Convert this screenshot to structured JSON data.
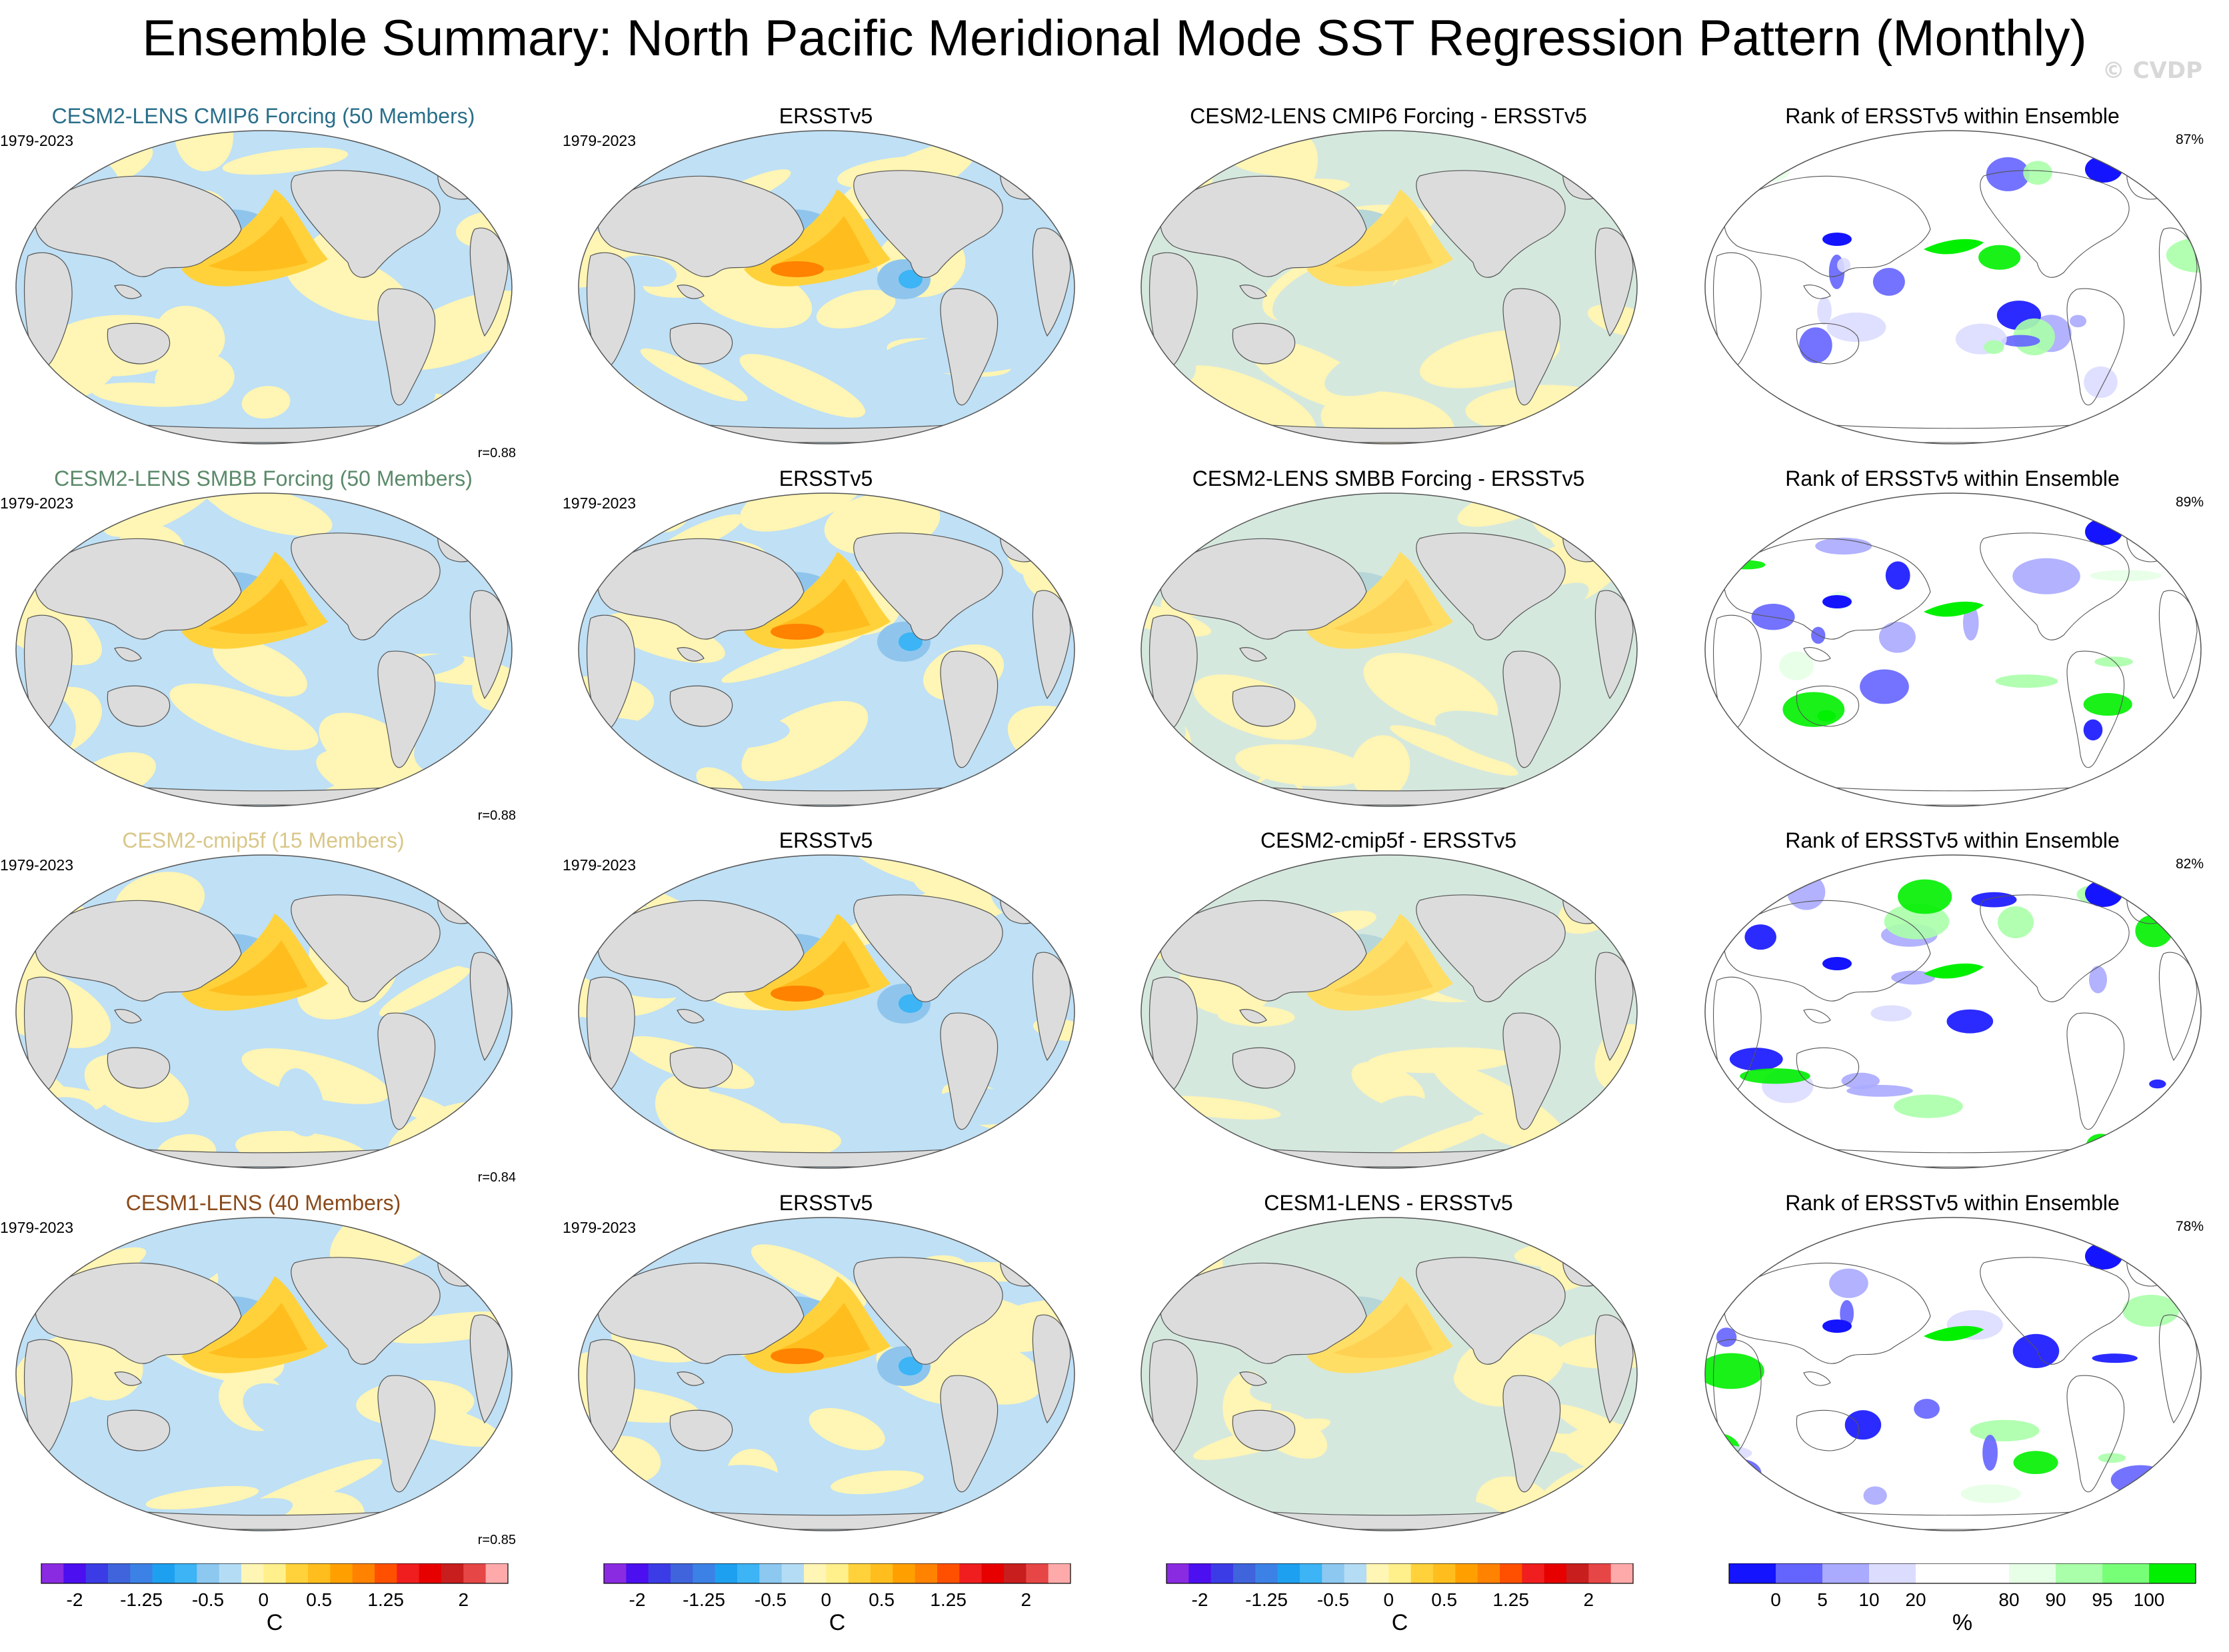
{
  "title": "Ensemble Summary: North Pacific Meridional Mode SST Regression Pattern (Monthly)",
  "watermark": "© CVDP",
  "rows": [
    {
      "model": "CESM2-LENS CMIP6 Forcing (50 Members)",
      "model_color": "#2a6f8a",
      "period_model": "1979-2023",
      "period_obs": "1979-2023",
      "r": "r=0.88",
      "obs_title": "ERSSTv5",
      "diff_title": "CESM2-LENS CMIP6 Forcing - ERSSTv5",
      "rank_title": "Rank of ERSSTv5 within Ensemble",
      "pct": "87%"
    },
    {
      "model": "CESM2-LENS SMBB Forcing (50 Members)",
      "model_color": "#5b8a6a",
      "period_model": "1979-2023",
      "period_obs": "1979-2023",
      "r": "r=0.88",
      "obs_title": "ERSSTv5",
      "diff_title": "CESM2-LENS SMBB Forcing - ERSSTv5",
      "rank_title": "Rank of ERSSTv5 within Ensemble",
      "pct": "89%"
    },
    {
      "model": "CESM2-cmip5f (15 Members)",
      "model_color": "#d9c78a",
      "period_model": "1979-2023",
      "period_obs": "1979-2023",
      "r": "r=0.84",
      "obs_title": "ERSSTv5",
      "diff_title": "CESM2-cmip5f - ERSSTv5",
      "rank_title": "Rank of ERSSTv5 within Ensemble",
      "pct": "82%"
    },
    {
      "model": "CESM1-LENS (40 Members)",
      "model_color": "#8a4a1a",
      "period_model": "1979-2023",
      "period_obs": "1979-2023",
      "r": "r=0.85",
      "obs_title": "ERSSTv5",
      "diff_title": "CESM1-LENS - ERSSTv5",
      "rank_title": "Rank of ERSSTv5 within Ensemble",
      "pct": "78%"
    }
  ],
  "colorbar_sst": {
    "unit": "C",
    "colors": [
      "#8a2be2",
      "#4b0ff0",
      "#3c3ce6",
      "#3f64dc",
      "#3c82e6",
      "#1ea0f0",
      "#3cb4f5",
      "#8cc8f0",
      "#b4dcf5",
      "#fff5b4",
      "#fff08c",
      "#ffd23c",
      "#ffbe1e",
      "#ffa000",
      "#ff8200",
      "#ff5000",
      "#f01e1e",
      "#e60000",
      "#c81e1e",
      "#e64646",
      "#ffaaaa"
    ],
    "ticks": [
      "-2",
      "-1.25",
      "-0.5",
      "0",
      "0.5",
      "1.25",
      "2"
    ]
  },
  "colorbar_rank": {
    "unit": "%",
    "colors": [
      "#1414ff",
      "#6464ff",
      "#aaaaff",
      "#dcdcff",
      "#ffffff",
      "#ffffff",
      "#e6ffe6",
      "#aaffaa",
      "#78ff78",
      "#00f000"
    ],
    "ticks": [
      "0",
      "5",
      "10",
      "20",
      "80",
      "90",
      "95",
      "100"
    ]
  }
}
